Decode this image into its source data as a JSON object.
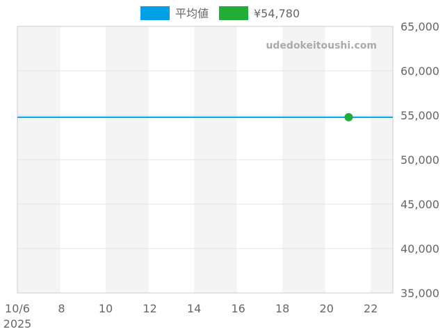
{
  "chart_data": {
    "type": "line",
    "title": "",
    "watermark": "udedokeitoushi.com",
    "legend": {
      "placement": "top-center",
      "entries": [
        {
          "label": "平均値",
          "color": "#009fe8"
        },
        {
          "label": "¥54,780",
          "color": "#22ac38"
        }
      ]
    },
    "x_range_days": [
      "2025-10-06",
      "2025-10-23"
    ],
    "x_ticks": [
      {
        "day": 6,
        "label": "10/6",
        "sublabel": "2025"
      },
      {
        "day": 8,
        "label": "8"
      },
      {
        "day": 10,
        "label": "10"
      },
      {
        "day": 12,
        "label": "12"
      },
      {
        "day": 14,
        "label": "14"
      },
      {
        "day": 16,
        "label": "16"
      },
      {
        "day": 18,
        "label": "18"
      },
      {
        "day": 20,
        "label": "20"
      },
      {
        "day": 22,
        "label": "22"
      }
    ],
    "ylim": [
      35000,
      65000
    ],
    "y_ticks": [
      {
        "value": 35000,
        "label": "35,000"
      },
      {
        "value": 40000,
        "label": "40,000"
      },
      {
        "value": 45000,
        "label": "45,000"
      },
      {
        "value": 50000,
        "label": "50,000"
      },
      {
        "value": 55000,
        "label": "55,000"
      },
      {
        "value": 60000,
        "label": "60,000"
      },
      {
        "value": 65000,
        "label": "65,000"
      }
    ],
    "y_axis_position": "right",
    "grid": true,
    "series": [
      {
        "name": "平均値",
        "kind": "horizontal-line",
        "value": 54780,
        "color": "#009fe8"
      },
      {
        "name": "¥54,780",
        "kind": "point",
        "points": [
          {
            "day": 21,
            "value": 54780
          }
        ],
        "color": "#22ac38"
      }
    ]
  }
}
